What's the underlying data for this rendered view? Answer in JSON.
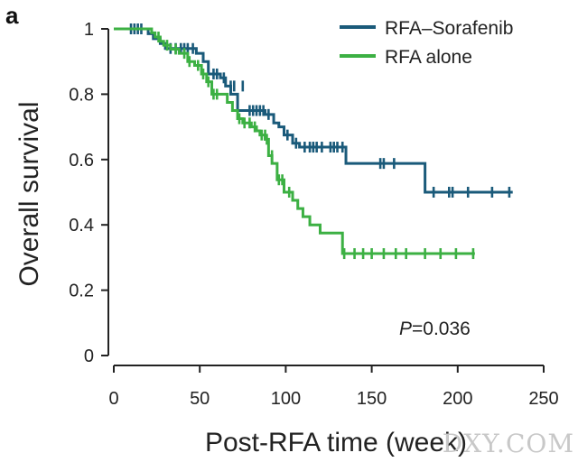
{
  "panel_label": "a",
  "watermark": "DXY.COM",
  "colors": {
    "RFA–Sorafenib": "#1a5a7a",
    "RFA alone": "#3cb043",
    "axis": "#222222"
  },
  "chart_data": {
    "type": "line",
    "subtype": "kaplan-meier",
    "xlabel": "Post-RFA time (week)",
    "ylabel": "Overall survival",
    "xlim": [
      0,
      250
    ],
    "ylim": [
      0,
      1
    ],
    "xticks": [
      0,
      50,
      100,
      150,
      200,
      250
    ],
    "yticks": [
      0,
      0.2,
      0.4,
      0.6,
      0.8,
      1
    ],
    "ytick_labels": [
      "0",
      "0.2",
      "0.4",
      "0.6",
      "0.8",
      "1"
    ],
    "grid": false,
    "legend_position": "top-right",
    "annotation": {
      "prefix": "P",
      "text": "=0.036"
    },
    "series": [
      {
        "name": "RFA–Sorafenib",
        "steps": [
          [
            0,
            1.0
          ],
          [
            18,
            1.0
          ],
          [
            20,
            0.985
          ],
          [
            23,
            0.97
          ],
          [
            27,
            0.955
          ],
          [
            30,
            0.94
          ],
          [
            48,
            0.925
          ],
          [
            52,
            0.9
          ],
          [
            55,
            0.862
          ],
          [
            62,
            0.85
          ],
          [
            65,
            0.825
          ],
          [
            68,
            0.8
          ],
          [
            72,
            0.75
          ],
          [
            88,
            0.738
          ],
          [
            93,
            0.712
          ],
          [
            96,
            0.7
          ],
          [
            99,
            0.675
          ],
          [
            104,
            0.65
          ],
          [
            108,
            0.638
          ],
          [
            135,
            0.588
          ],
          [
            181,
            0.5
          ],
          [
            232,
            0.5
          ]
        ],
        "censored": [
          [
            10,
            1.0
          ],
          [
            12,
            1.0
          ],
          [
            14,
            1.0
          ],
          [
            16,
            1.0
          ],
          [
            33,
            0.94
          ],
          [
            36,
            0.94
          ],
          [
            39,
            0.94
          ],
          [
            41,
            0.94
          ],
          [
            43,
            0.94
          ],
          [
            46,
            0.94
          ],
          [
            58,
            0.862
          ],
          [
            60,
            0.862
          ],
          [
            64,
            0.85
          ],
          [
            68,
            0.825
          ],
          [
            70,
            0.825
          ],
          [
            75,
            0.825
          ],
          [
            79,
            0.75
          ],
          [
            81,
            0.75
          ],
          [
            83,
            0.75
          ],
          [
            85,
            0.75
          ],
          [
            87,
            0.75
          ],
          [
            90,
            0.738
          ],
          [
            101,
            0.675
          ],
          [
            106,
            0.65
          ],
          [
            111,
            0.638
          ],
          [
            114,
            0.638
          ],
          [
            116,
            0.638
          ],
          [
            118,
            0.638
          ],
          [
            121,
            0.638
          ],
          [
            126,
            0.638
          ],
          [
            128,
            0.638
          ],
          [
            130,
            0.638
          ],
          [
            133,
            0.638
          ],
          [
            155,
            0.588
          ],
          [
            157,
            0.588
          ],
          [
            163,
            0.588
          ],
          [
            186,
            0.5
          ],
          [
            195,
            0.5
          ],
          [
            197,
            0.5
          ],
          [
            206,
            0.5
          ],
          [
            220,
            0.5
          ],
          [
            230,
            0.5
          ]
        ]
      },
      {
        "name": "RFA alone",
        "steps": [
          [
            0,
            1.0
          ],
          [
            20,
            1.0
          ],
          [
            22,
            0.988
          ],
          [
            24,
            0.975
          ],
          [
            27,
            0.962
          ],
          [
            29,
            0.95
          ],
          [
            33,
            0.938
          ],
          [
            38,
            0.925
          ],
          [
            43,
            0.9
          ],
          [
            47,
            0.888
          ],
          [
            51,
            0.862
          ],
          [
            54,
            0.838
          ],
          [
            57,
            0.8
          ],
          [
            62,
            0.8
          ],
          [
            66,
            0.775
          ],
          [
            69,
            0.75
          ],
          [
            72,
            0.725
          ],
          [
            75,
            0.712
          ],
          [
            80,
            0.7
          ],
          [
            83,
            0.688
          ],
          [
            85,
            0.675
          ],
          [
            88,
            0.662
          ],
          [
            90,
            0.612
          ],
          [
            92,
            0.588
          ],
          [
            95,
            0.538
          ],
          [
            99,
            0.5
          ],
          [
            104,
            0.475
          ],
          [
            107,
            0.45
          ],
          [
            110,
            0.425
          ],
          [
            114,
            0.4
          ],
          [
            120,
            0.375
          ],
          [
            133,
            0.312
          ],
          [
            210,
            0.312
          ]
        ],
        "censored": [
          [
            26,
            0.975
          ],
          [
            31,
            0.95
          ],
          [
            36,
            0.938
          ],
          [
            41,
            0.925
          ],
          [
            44,
            0.9
          ],
          [
            49,
            0.888
          ],
          [
            52,
            0.862
          ],
          [
            55,
            0.838
          ],
          [
            58,
            0.8
          ],
          [
            60,
            0.8
          ],
          [
            73,
            0.725
          ],
          [
            76,
            0.712
          ],
          [
            79,
            0.712
          ],
          [
            82,
            0.7
          ],
          [
            86,
            0.675
          ],
          [
            88,
            0.675
          ],
          [
            89,
            0.662
          ],
          [
            92,
            0.612
          ],
          [
            96,
            0.538
          ],
          [
            98,
            0.538
          ],
          [
            102,
            0.5
          ],
          [
            134,
            0.312
          ],
          [
            140,
            0.312
          ],
          [
            145,
            0.312
          ],
          [
            150,
            0.312
          ],
          [
            157,
            0.312
          ],
          [
            164,
            0.312
          ],
          [
            170,
            0.312
          ],
          [
            181,
            0.312
          ],
          [
            190,
            0.312
          ],
          [
            199,
            0.312
          ],
          [
            209,
            0.312
          ]
        ]
      }
    ]
  }
}
